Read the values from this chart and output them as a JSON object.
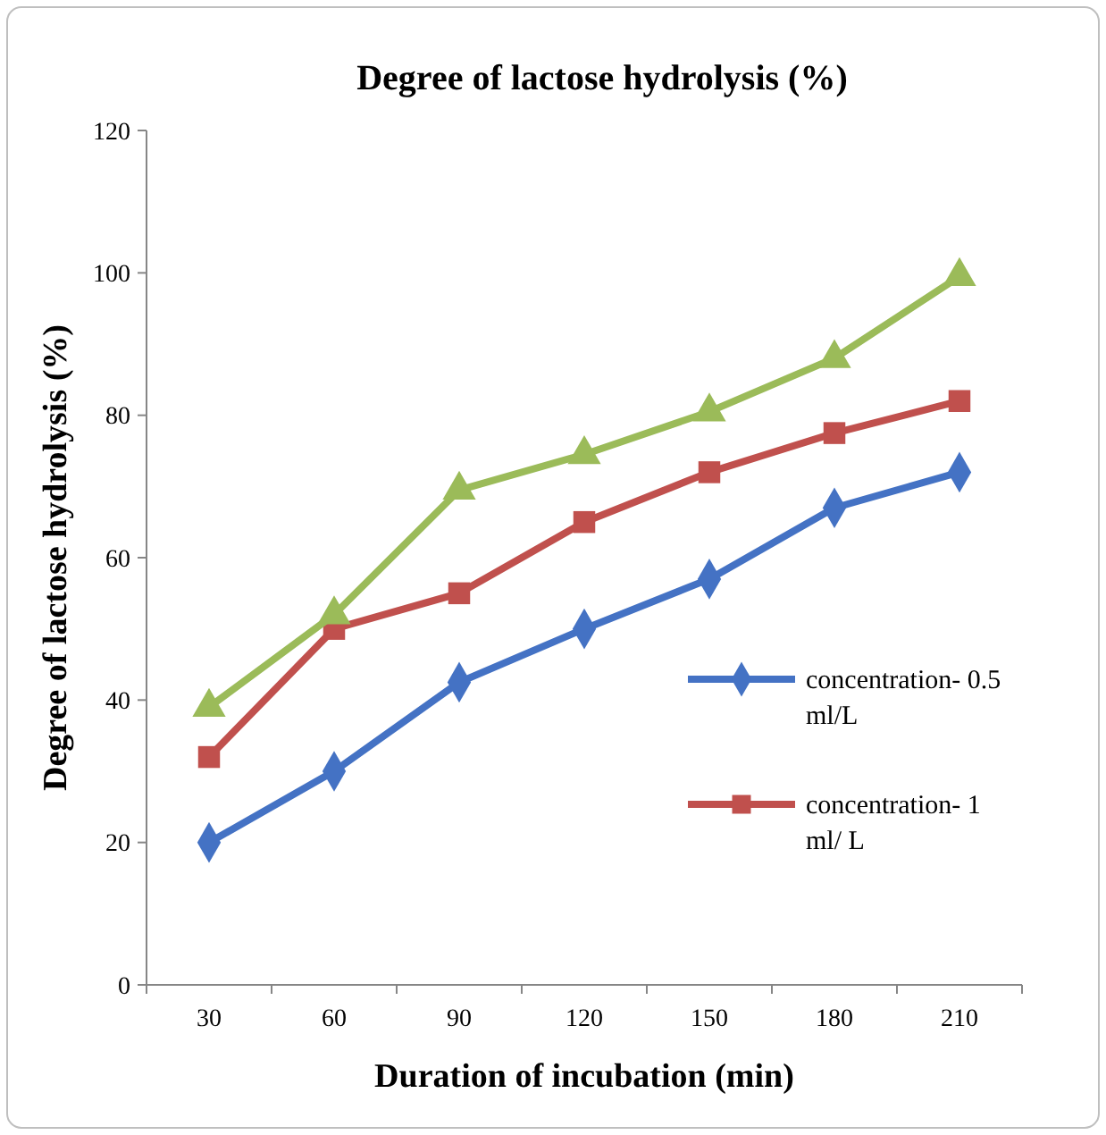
{
  "chart_data": {
    "type": "line",
    "title": "Degree of lactose hydrolysis (%)",
    "xlabel": "Duration of incubation (min)",
    "ylabel": "Degree of lactose hydrolysis (%)",
    "categories": [
      "30",
      "60",
      "90",
      "120",
      "150",
      "180",
      "210"
    ],
    "ylim": [
      0,
      120
    ],
    "yticks": [
      0,
      20,
      40,
      60,
      80,
      100,
      120
    ],
    "grid": false,
    "legend": "right",
    "series": [
      {
        "name": "concentration- 0.5 ml/L",
        "color": "#4472c4",
        "marker": "diamond",
        "values": [
          20,
          30,
          42.5,
          50,
          57,
          67,
          72
        ]
      },
      {
        "name": "concentration- 1 ml/ L",
        "color": "#c0504d",
        "marker": "square",
        "values": [
          32,
          50,
          55,
          65,
          72,
          77.5,
          82
        ]
      },
      {
        "color": "#9bbb59",
        "marker": "triangle",
        "values": [
          39,
          52,
          69.5,
          74.5,
          80.5,
          88,
          99.5
        ]
      }
    ]
  }
}
